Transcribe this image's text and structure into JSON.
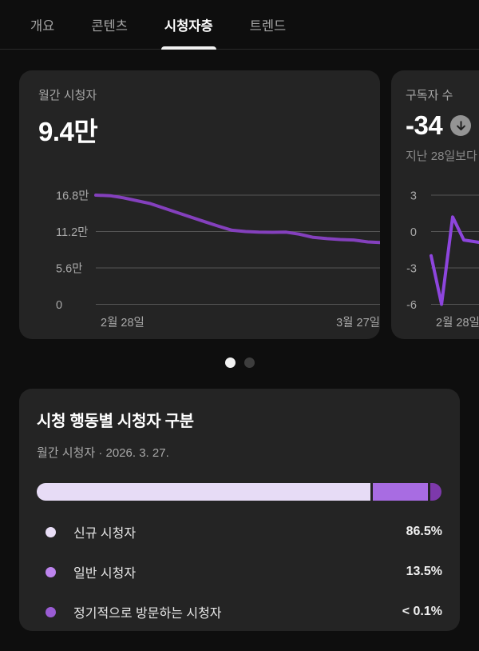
{
  "tabs": {
    "items": [
      {
        "label": "개요",
        "active": false
      },
      {
        "label": "콘텐츠",
        "active": false
      },
      {
        "label": "시청자층",
        "active": true
      },
      {
        "label": "트렌드",
        "active": false
      }
    ]
  },
  "cards": {
    "monthly_viewers": {
      "label": "월간 시청자",
      "value": "9.4만"
    },
    "subscribers": {
      "label": "구독자 수",
      "value": "-34",
      "badge_icon": "arrow-down-circle-icon",
      "compare_text": "지난 28일보다"
    }
  },
  "carousel": {
    "dot_count": 2,
    "active_dot": 0
  },
  "breakdown": {
    "title": "시청 행동별 시청자 구분",
    "subtitle": "월간 시청자 · 2026. 3. 27.",
    "legend": [
      {
        "label": "신규 시청자",
        "value": "86.5%",
        "pct": 86.5,
        "dot_color": "#e9def7",
        "bar_color": "#e7dcf6"
      },
      {
        "label": "일반 시청자",
        "value": "13.5%",
        "pct": 13.5,
        "dot_color": "#bd84ee",
        "bar_color": "#a86ce2"
      },
      {
        "label": "정기적으로 방문하는 시청자",
        "value": "< 0.1%",
        "pct": 0.1,
        "dot_color": "#9a5cd4",
        "bar_color": "#7d39ab"
      }
    ],
    "bar_visual_widths_pct": [
      81.8,
      13.5,
      2.7
    ]
  },
  "chart_data": [
    {
      "type": "line",
      "title": "월간 시청자",
      "unit": "만",
      "line_color": "#8440bd",
      "grid_color": "#565656",
      "label_color": "#a8a8a8",
      "ylim": [
        0,
        16.8
      ],
      "y_ticks": [
        {
          "label": "16.8만",
          "value": 16.8
        },
        {
          "label": "11.2만",
          "value": 11.2
        },
        {
          "label": "5.6만",
          "value": 5.6
        },
        {
          "label": "0",
          "value": 0
        }
      ],
      "x_labels": [
        {
          "label": "2월 28일",
          "align": "start"
        },
        {
          "label": "3월 27일",
          "align": "end"
        }
      ],
      "points": [
        {
          "x": 0.0,
          "y": 16.8
        },
        {
          "x": 0.05,
          "y": 16.72
        },
        {
          "x": 0.097,
          "y": 16.4
        },
        {
          "x": 0.192,
          "y": 15.5
        },
        {
          "x": 0.287,
          "y": 14.1
        },
        {
          "x": 0.384,
          "y": 12.7
        },
        {
          "x": 0.43,
          "y": 12.05
        },
        {
          "x": 0.479,
          "y": 11.4
        },
        {
          "x": 0.527,
          "y": 11.2
        },
        {
          "x": 0.573,
          "y": 11.1
        },
        {
          "x": 0.622,
          "y": 11.08
        },
        {
          "x": 0.67,
          "y": 11.1
        },
        {
          "x": 0.716,
          "y": 10.8
        },
        {
          "x": 0.765,
          "y": 10.3
        },
        {
          "x": 0.814,
          "y": 10.1
        },
        {
          "x": 0.86,
          "y": 9.97
        },
        {
          "x": 0.908,
          "y": 9.9
        },
        {
          "x": 0.957,
          "y": 9.6
        },
        {
          "x": 1.0,
          "y": 9.5
        }
      ]
    },
    {
      "type": "line",
      "title": "구독자 수",
      "line_color": "#8d45dd",
      "grid_color": "#565656",
      "label_color": "#a8a8a8",
      "ylim": [
        -6,
        3
      ],
      "y_ticks": [
        {
          "label": "3",
          "value": 3
        },
        {
          "label": "0",
          "value": 0
        },
        {
          "label": "-3",
          "value": -3
        },
        {
          "label": "-6",
          "value": -6
        }
      ],
      "x_labels": [
        {
          "label": "2월 28일",
          "align": "start"
        }
      ],
      "points": [
        {
          "x": 0.0,
          "y": -2.0
        },
        {
          "x": 0.06,
          "y": -6.0
        },
        {
          "x": 0.124,
          "y": 1.2
        },
        {
          "x": 0.188,
          "y": -0.7
        },
        {
          "x": 0.257,
          "y": -0.85
        },
        {
          "x": 0.32,
          "y": -1.0
        }
      ]
    }
  ]
}
